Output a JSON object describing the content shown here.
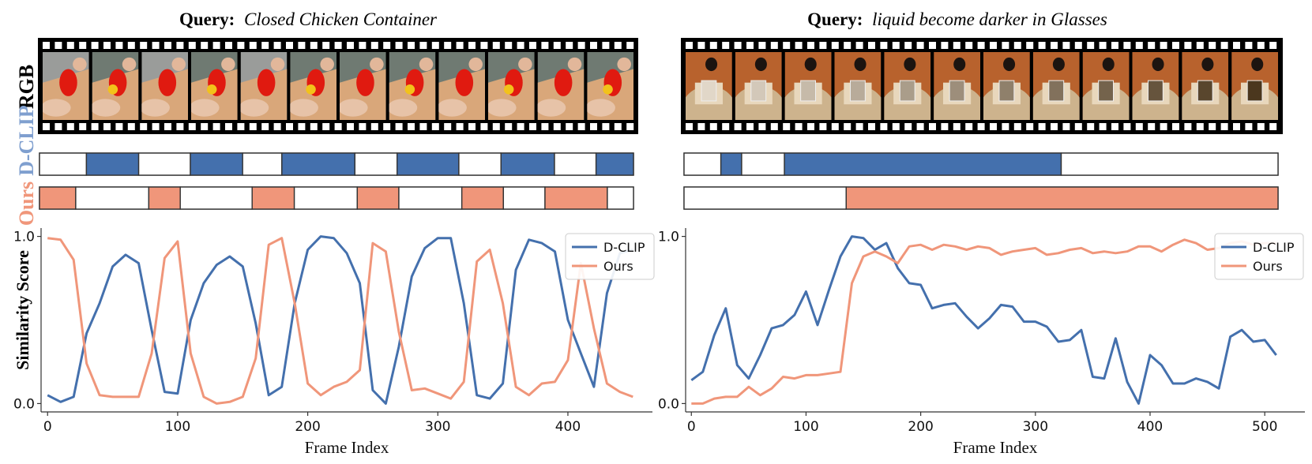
{
  "colors": {
    "dclip": "#4470ad",
    "ours": "#f0967a",
    "dclip_label": "#7f9fcf",
    "ours_label": "#f0967a",
    "film": "#000000"
  },
  "row_labels": {
    "rgb": "RGB",
    "dclip": "D-CLIP",
    "ours": "Ours"
  },
  "axis_common": {
    "ylabel": "Similarity Score"
  },
  "panels": [
    {
      "id": "left",
      "query_prefix": "Query:",
      "query_text": "Closed Chicken Container",
      "frame_count": 12,
      "frame_theme": "chicken",
      "dclip_segments": [
        [
          0,
          0.079
        ],
        [
          0.079,
          0.167
        ],
        [
          0.167,
          0.254
        ],
        [
          0.254,
          0.342
        ],
        [
          0.342,
          0.408
        ],
        [
          0.408,
          0.531
        ],
        [
          0.531,
          0.602
        ],
        [
          0.602,
          0.706
        ],
        [
          0.706,
          0.777
        ],
        [
          0.777,
          0.867
        ],
        [
          0.867,
          0.937
        ],
        [
          0.937,
          1.0
        ]
      ],
      "dclip_filled": [
        false,
        true,
        false,
        true,
        false,
        true,
        false,
        true,
        false,
        true,
        false,
        true
      ],
      "ours_segments": [
        [
          0,
          0.061
        ],
        [
          0.061,
          0.184
        ],
        [
          0.184,
          0.237
        ],
        [
          0.237,
          0.358
        ],
        [
          0.358,
          0.429
        ],
        [
          0.429,
          0.535
        ],
        [
          0.535,
          0.605
        ],
        [
          0.605,
          0.711
        ],
        [
          0.711,
          0.781
        ],
        [
          0.781,
          0.851
        ],
        [
          0.851,
          0.956
        ],
        [
          0.956,
          1.0
        ],
        [
          1.0,
          1.0
        ]
      ],
      "ours_filled": [
        true,
        false,
        true,
        false,
        true,
        false,
        true,
        false,
        true,
        false,
        true,
        false,
        true
      ],
      "chart_data": {
        "type": "line",
        "xlabel": "Frame Index",
        "ylabel": "Similarity Score",
        "xlim": [
          -5,
          465
        ],
        "ylim": [
          -0.05,
          1.05
        ],
        "xticks": [
          0,
          100,
          200,
          300,
          400
        ],
        "yticks": [
          0.0,
          1.0
        ],
        "ytick_labels": [
          "0.0",
          "1.0"
        ],
        "legend": [
          "D-CLIP",
          "Ours"
        ],
        "legend_position": "top-right",
        "series": [
          {
            "name": "D-CLIP",
            "x": [
              0,
              10,
              20,
              30,
              40,
              50,
              60,
              70,
              80,
              90,
              100,
              110,
              120,
              130,
              140,
              150,
              160,
              170,
              180,
              190,
              200,
              210,
              220,
              230,
              240,
              250,
              260,
              270,
              280,
              290,
              300,
              310,
              320,
              330,
              340,
              350,
              360,
              370,
              380,
              390,
              400,
              410,
              420,
              430,
              440,
              450
            ],
            "values": [
              0.05,
              0.01,
              0.04,
              0.42,
              0.6,
              0.82,
              0.89,
              0.84,
              0.44,
              0.07,
              0.06,
              0.5,
              0.72,
              0.83,
              0.88,
              0.82,
              0.48,
              0.05,
              0.1,
              0.6,
              0.92,
              1.0,
              0.99,
              0.9,
              0.72,
              0.08,
              0.0,
              0.34,
              0.76,
              0.93,
              0.99,
              0.99,
              0.6,
              0.05,
              0.03,
              0.12,
              0.8,
              0.98,
              0.96,
              0.91,
              0.5,
              0.3,
              0.1,
              0.66,
              0.9,
              0.92
            ]
          },
          {
            "name": "Ours",
            "x": [
              0,
              10,
              20,
              30,
              40,
              50,
              60,
              70,
              80,
              90,
              100,
              110,
              120,
              130,
              140,
              150,
              160,
              170,
              180,
              190,
              200,
              210,
              220,
              230,
              240,
              250,
              260,
              270,
              280,
              290,
              300,
              310,
              320,
              330,
              340,
              350,
              360,
              370,
              380,
              390,
              400,
              410,
              420,
              430,
              440,
              450
            ],
            "values": [
              0.99,
              0.98,
              0.86,
              0.24,
              0.05,
              0.04,
              0.04,
              0.04,
              0.3,
              0.87,
              0.97,
              0.3,
              0.04,
              0.0,
              0.01,
              0.04,
              0.27,
              0.95,
              0.99,
              0.6,
              0.12,
              0.05,
              0.1,
              0.13,
              0.2,
              0.96,
              0.91,
              0.43,
              0.08,
              0.09,
              0.06,
              0.03,
              0.13,
              0.85,
              0.92,
              0.6,
              0.1,
              0.05,
              0.12,
              0.13,
              0.26,
              0.84,
              0.45,
              0.12,
              0.07,
              0.04
            ]
          }
        ]
      }
    },
    {
      "id": "right",
      "query_prefix": "Query:",
      "query_text": "liquid become darker in Glasses",
      "frame_count": 12,
      "frame_theme": "glass",
      "dclip_segments": [
        [
          0,
          0.062
        ],
        [
          0.062,
          0.097
        ],
        [
          0.097,
          0.169
        ],
        [
          0.169,
          0.635
        ],
        [
          0.635,
          1.0
        ]
      ],
      "dclip_filled": [
        false,
        true,
        false,
        true,
        false
      ],
      "ours_segments": [
        [
          0,
          0.273
        ],
        [
          0.273,
          1.0
        ]
      ],
      "ours_filled": [
        false,
        true
      ],
      "chart_data": {
        "type": "line",
        "xlabel": "Frame Index",
        "ylabel": "",
        "xlim": [
          -5,
          535
        ],
        "ylim": [
          -0.05,
          1.05
        ],
        "xticks": [
          0,
          100,
          200,
          300,
          400,
          500
        ],
        "yticks": [
          0.0,
          1.0
        ],
        "ytick_labels": [
          "0.0",
          "1.0"
        ],
        "legend": [
          "D-CLIP",
          "Ours"
        ],
        "legend_position": "top-right",
        "series": [
          {
            "name": "D-CLIP",
            "x": [
              0,
              10,
              20,
              30,
              40,
              50,
              60,
              70,
              80,
              90,
              100,
              110,
              120,
              130,
              140,
              150,
              160,
              170,
              180,
              190,
              200,
              210,
              220,
              230,
              240,
              250,
              260,
              270,
              280,
              290,
              300,
              310,
              320,
              330,
              340,
              350,
              360,
              370,
              380,
              390,
              400,
              410,
              420,
              430,
              440,
              450,
              460,
              470,
              480,
              490,
              500,
              510
            ],
            "values": [
              0.14,
              0.19,
              0.41,
              0.57,
              0.23,
              0.15,
              0.29,
              0.45,
              0.47,
              0.53,
              0.67,
              0.47,
              0.68,
              0.88,
              1.0,
              0.99,
              0.92,
              0.96,
              0.81,
              0.72,
              0.71,
              0.57,
              0.59,
              0.6,
              0.52,
              0.45,
              0.51,
              0.59,
              0.58,
              0.49,
              0.49,
              0.46,
              0.37,
              0.38,
              0.44,
              0.16,
              0.15,
              0.39,
              0.13,
              0.0,
              0.29,
              0.23,
              0.12,
              0.12,
              0.15,
              0.13,
              0.09,
              0.4,
              0.44,
              0.37,
              0.38,
              0.29
            ]
          },
          {
            "name": "Ours",
            "x": [
              0,
              10,
              20,
              30,
              40,
              50,
              60,
              70,
              80,
              90,
              100,
              110,
              120,
              130,
              140,
              150,
              160,
              170,
              180,
              190,
              200,
              210,
              220,
              230,
              240,
              250,
              260,
              270,
              280,
              290,
              300,
              310,
              320,
              330,
              340,
              350,
              360,
              370,
              380,
              390,
              400,
              410,
              420,
              430,
              440,
              450,
              460,
              470,
              480,
              490,
              500,
              510
            ],
            "values": [
              0.0,
              0.0,
              0.03,
              0.04,
              0.04,
              0.1,
              0.05,
              0.09,
              0.16,
              0.15,
              0.17,
              0.17,
              0.18,
              0.19,
              0.72,
              0.88,
              0.91,
              0.88,
              0.84,
              0.94,
              0.95,
              0.92,
              0.95,
              0.94,
              0.92,
              0.94,
              0.93,
              0.89,
              0.91,
              0.92,
              0.93,
              0.89,
              0.9,
              0.92,
              0.93,
              0.9,
              0.91,
              0.9,
              0.91,
              0.94,
              0.94,
              0.91,
              0.95,
              0.98,
              0.96,
              0.92,
              0.93,
              0.96,
              0.97,
              0.95,
              0.96,
              0.96
            ]
          }
        ]
      }
    }
  ]
}
